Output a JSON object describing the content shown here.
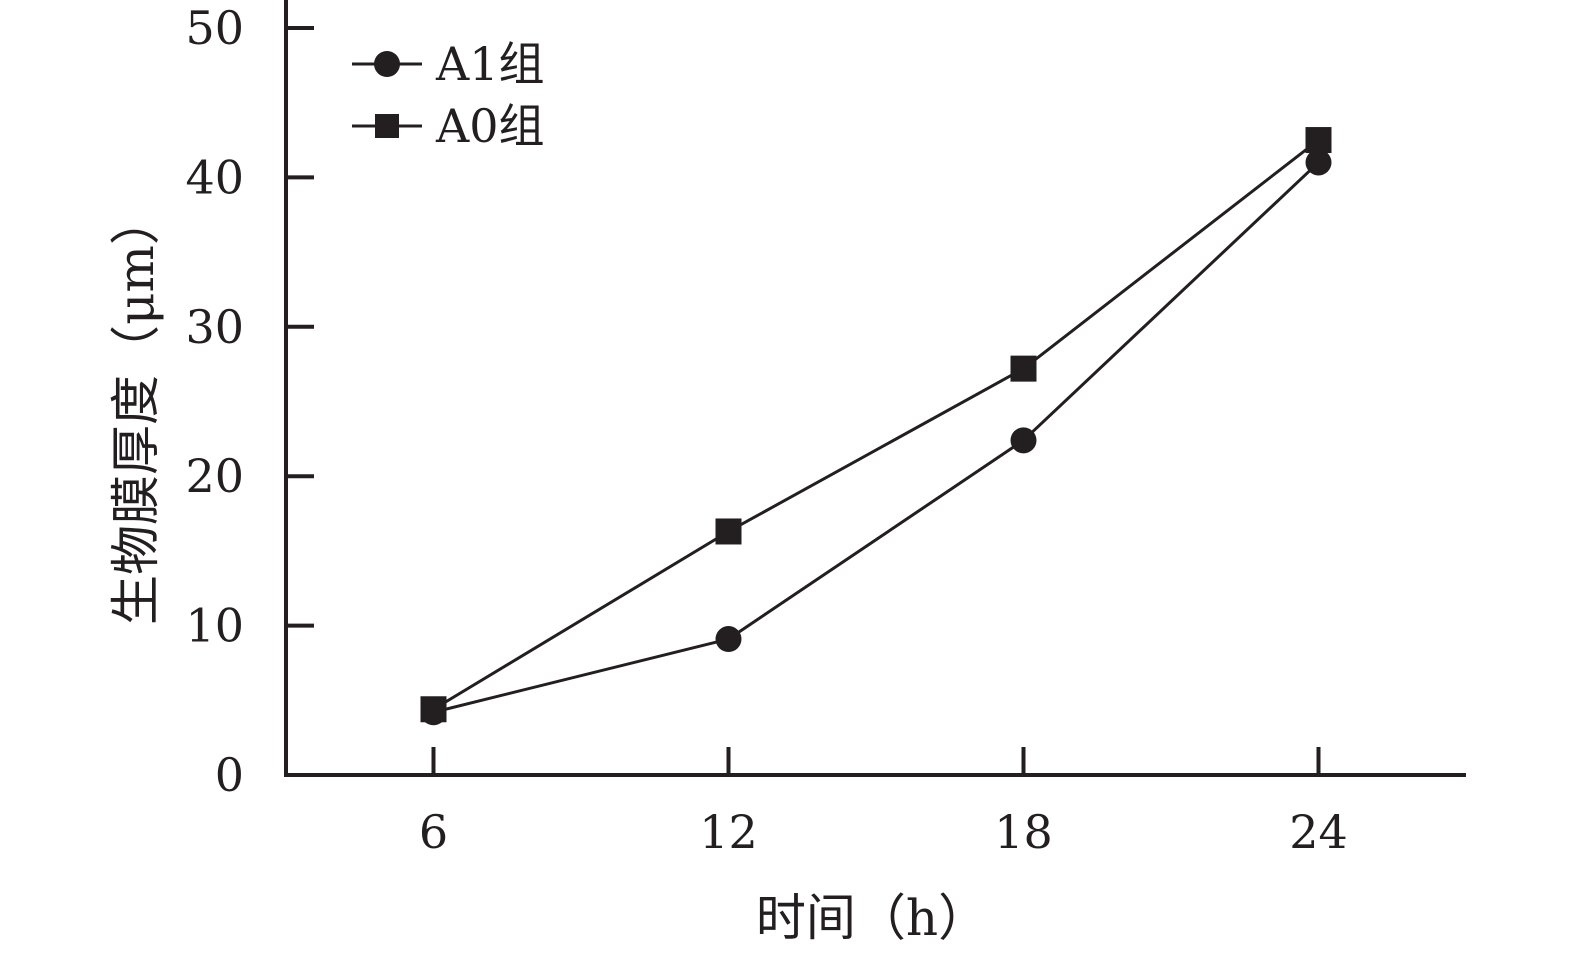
{
  "chart_data": {
    "type": "line",
    "title": "",
    "xlabel": "时间（h）",
    "ylabel": "生物膜厚度（μm）",
    "x": [
      6,
      12,
      18,
      24
    ],
    "x_tick_labels": [
      "6",
      "12",
      "18",
      "24"
    ],
    "y_tick_labels": [
      "0",
      "10",
      "20",
      "30",
      "40",
      "50"
    ],
    "xlim": [
      3,
      27
    ],
    "ylim": [
      0,
      50
    ],
    "grid": false,
    "legend_position": "top-left",
    "series": [
      {
        "name": "A1组",
        "marker": "circle",
        "color": "#231f20",
        "values": [
          4.2,
          9.1,
          22.4,
          41.0
        ]
      },
      {
        "name": "A0组",
        "marker": "square",
        "color": "#231f20",
        "values": [
          4.4,
          16.3,
          27.2,
          42.5
        ]
      }
    ]
  }
}
